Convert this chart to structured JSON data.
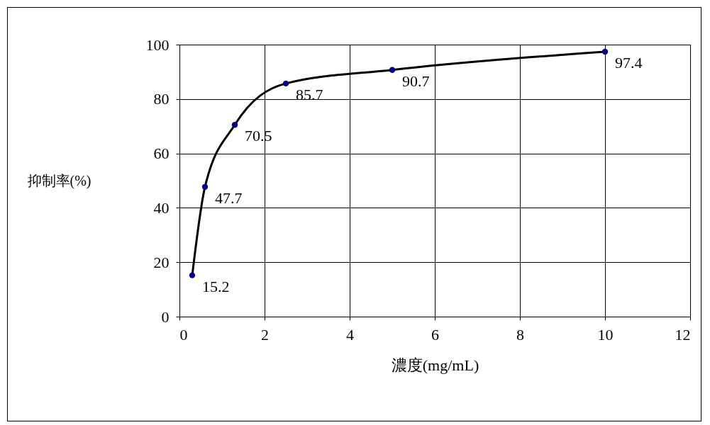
{
  "chart_data": {
    "type": "line",
    "xlabel": "濃度(mg/mL)",
    "ylabel": "抑制率(%)",
    "xlim": [
      0,
      12
    ],
    "xticks": [
      0,
      2,
      4,
      6,
      8,
      10,
      12
    ],
    "ylim": [
      0,
      100
    ],
    "yticks": [
      0,
      20,
      40,
      60,
      80,
      100
    ],
    "grid": true,
    "series": [
      {
        "color": "#000000",
        "marker": "none",
        "x": [
          0.3,
          0.6,
          1.3,
          2.5,
          5,
          10
        ],
        "values": [
          15.2,
          47.7,
          70.5,
          85.7,
          90.7,
          97.4
        ]
      },
      {
        "type": "scatter",
        "color": "#000080",
        "marker": "circle",
        "x": [
          0.3,
          0.6,
          1.3,
          2.5,
          5,
          10
        ],
        "values": [
          15.2,
          47.7,
          70.5,
          85.7,
          90.7,
          97.4
        ],
        "value_labels": [
          "15.2",
          "47.7",
          "70.5",
          "85.7",
          "90.7",
          "97.4"
        ]
      }
    ]
  }
}
